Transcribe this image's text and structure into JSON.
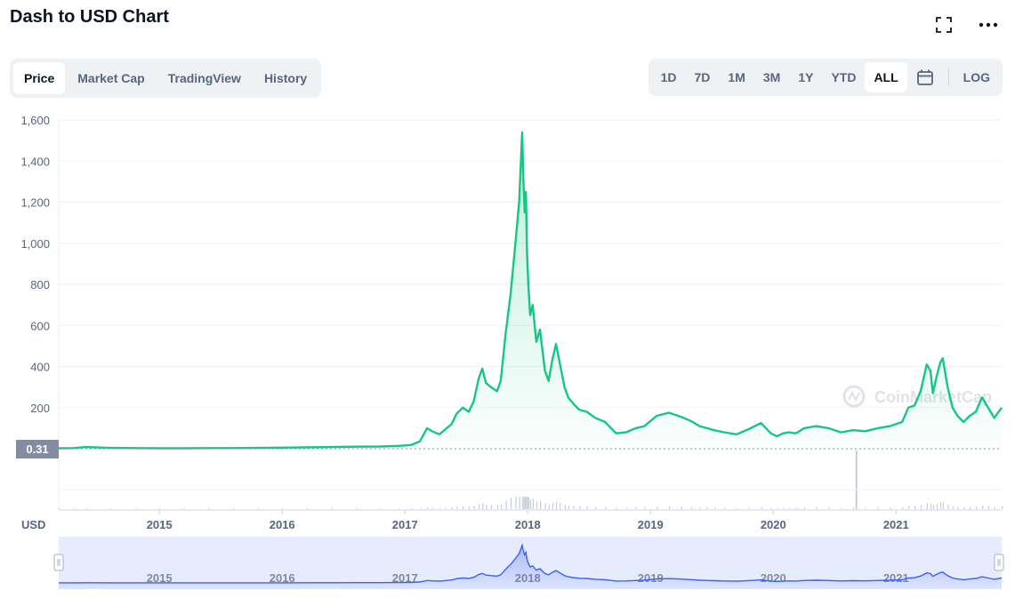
{
  "header": {
    "title": "Dash to USD Chart"
  },
  "icons": {
    "fullscreen": "fullscreen-icon",
    "more": "more-icon",
    "calendar": "calendar-icon",
    "watermark": "coinmarketcap-logo-icon"
  },
  "tabs": [
    {
      "label": "Price",
      "active": true
    },
    {
      "label": "Market Cap",
      "active": false
    },
    {
      "label": "TradingView",
      "active": false
    },
    {
      "label": "History",
      "active": false
    }
  ],
  "ranges": [
    {
      "label": "1D",
      "active": false
    },
    {
      "label": "7D",
      "active": false
    },
    {
      "label": "1M",
      "active": false
    },
    {
      "label": "3M",
      "active": false
    },
    {
      "label": "1Y",
      "active": false
    },
    {
      "label": "YTD",
      "active": false
    },
    {
      "label": "ALL",
      "active": true
    }
  ],
  "log_label": "LOG",
  "watermark": "CoinMarketCap",
  "current_price_label": "0.31",
  "currency_label": "USD",
  "colors": {
    "line": "#16c784",
    "navigator_line": "#3861fb",
    "navigator_bg": "#e6ebfd",
    "price_tag": "#858ca2",
    "volume": "#c7cdd9"
  },
  "chart_data": {
    "type": "line",
    "title": "Dash to USD Chart",
    "ylabel": "USD",
    "y_ticks": [
      1600,
      1400,
      1200,
      1000,
      800,
      600,
      400,
      200
    ],
    "y_tick_labels": [
      "1,600",
      "1,400",
      "1,200",
      "1,000",
      "800",
      "600",
      "400",
      "200"
    ],
    "ylim": [
      0,
      1600
    ],
    "x_ticks": [
      2015,
      2016,
      2017,
      2018,
      2019,
      2020,
      2021
    ],
    "x_tick_labels": [
      "2015",
      "2016",
      "2017",
      "2018",
      "2019",
      "2020",
      "2021"
    ],
    "xlim": [
      2014.18,
      2021.86
    ],
    "grid": true,
    "series": [
      {
        "x": [
          2014.18,
          2014.3,
          2014.4,
          2014.6,
          2014.8,
          2015.0,
          2015.2,
          2015.4,
          2015.6,
          2015.8,
          2016.0,
          2016.2,
          2016.4,
          2016.6,
          2016.8,
          2016.95,
          2017.05,
          2017.12,
          2017.18,
          2017.22,
          2017.28,
          2017.33,
          2017.38,
          2017.42,
          2017.47,
          2017.52,
          2017.56,
          2017.6,
          2017.63,
          2017.66,
          2017.7,
          2017.75,
          2017.78,
          2017.82,
          2017.86,
          2017.9,
          2017.93,
          2017.955,
          2017.965,
          2017.975,
          2017.985,
          2017.995,
          2018.005,
          2018.02,
          2018.04,
          2018.07,
          2018.1,
          2018.14,
          2018.17,
          2018.2,
          2018.23,
          2018.26,
          2018.3,
          2018.33,
          2018.37,
          2018.42,
          2018.48,
          2018.55,
          2018.63,
          2018.72,
          2018.8,
          2018.88,
          2018.95,
          2019.05,
          2019.15,
          2019.25,
          2019.33,
          2019.4,
          2019.46,
          2019.52,
          2019.6,
          2019.7,
          2019.8,
          2019.9,
          2019.98,
          2020.03,
          2020.08,
          2020.13,
          2020.18,
          2020.2,
          2020.25,
          2020.35,
          2020.45,
          2020.55,
          2020.65,
          2020.75,
          2020.85,
          2020.95,
          2021.05,
          2021.1,
          2021.15,
          2021.2,
          2021.25,
          2021.28,
          2021.3,
          2021.33,
          2021.36,
          2021.38,
          2021.42,
          2021.46,
          2021.5,
          2021.55,
          2021.6,
          2021.65,
          2021.7,
          2021.75,
          2021.8,
          2021.86
        ],
        "y": [
          2,
          3,
          8,
          4,
          3,
          2,
          2,
          3,
          3,
          4,
          5,
          7,
          8,
          10,
          11,
          14,
          18,
          35,
          100,
          85,
          70,
          95,
          120,
          170,
          200,
          180,
          230,
          340,
          390,
          320,
          300,
          280,
          330,
          560,
          750,
          1000,
          1200,
          1540,
          1300,
          1150,
          1250,
          950,
          800,
          650,
          700,
          520,
          580,
          380,
          330,
          430,
          510,
          420,
          300,
          250,
          220,
          190,
          180,
          150,
          130,
          75,
          80,
          100,
          110,
          160,
          175,
          155,
          135,
          110,
          100,
          90,
          80,
          70,
          95,
          125,
          75,
          60,
          75,
          80,
          75,
          80,
          100,
          110,
          100,
          80,
          90,
          85,
          100,
          110,
          130,
          200,
          210,
          280,
          410,
          380,
          270,
          350,
          420,
          440,
          300,
          200,
          160,
          130,
          160,
          180,
          250,
          200,
          150,
          200
        ]
      }
    ],
    "current_price": 0.31
  }
}
